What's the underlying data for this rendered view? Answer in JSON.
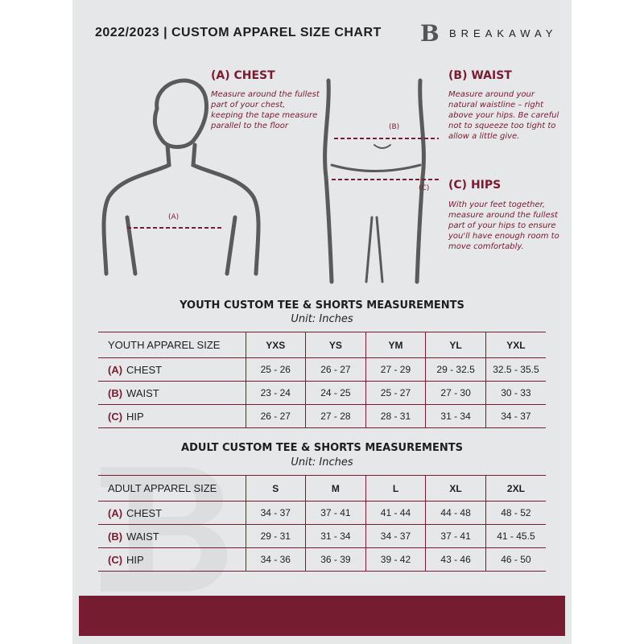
{
  "header": {
    "title": "2022/2023  |  CUSTOM APPAREL SIZE CHART",
    "brand": "BREAKAWAY",
    "logo_letter": "B"
  },
  "measures": {
    "chest": {
      "heading": "(A) CHEST",
      "marker": "(A)",
      "desc": "Measure around the fullest part of your chest, keeping the tape measure parallel to the floor"
    },
    "waist": {
      "heading": "(B) WAIST",
      "marker": "(B)",
      "desc": "Measure around your natural waistline – right above your hips. Be careful not to squeeze too tight to allow a little give."
    },
    "hips": {
      "heading": "(C) HIPS",
      "marker": "(C)",
      "desc": "With your feet together, measure around the fullest part of your hips to ensure you'll have enough room to move comfortably."
    }
  },
  "youth": {
    "title": "YOUTH CUSTOM TEE & SHORTS MEASUREMENTS",
    "unit": "Unit: Inches",
    "size_label": "YOUTH APPAREL SIZE",
    "sizes": [
      "YXS",
      "YS",
      "YM",
      "YL",
      "YXL"
    ],
    "rows": [
      {
        "letter": "(A)",
        "name": "CHEST",
        "values": [
          "25 - 26",
          "26 - 27",
          "27 - 29",
          "29 - 32.5",
          "32.5 - 35.5"
        ]
      },
      {
        "letter": "(B)",
        "name": "WAIST",
        "values": [
          "23 - 24",
          "24 - 25",
          "25 - 27",
          "27 - 30",
          "30 - 33"
        ]
      },
      {
        "letter": "(C)",
        "name": "HIP",
        "values": [
          "26 - 27",
          "27 - 28",
          "28 - 31",
          "31 - 34",
          "34 - 37"
        ]
      }
    ]
  },
  "adult": {
    "title": "ADULT CUSTOM TEE & SHORTS MEASUREMENTS",
    "unit": "Unit: Inches",
    "size_label": "ADULT APPAREL SIZE",
    "sizes": [
      "S",
      "M",
      "L",
      "XL",
      "2XL"
    ],
    "rows": [
      {
        "letter": "(A)",
        "name": "CHEST",
        "values": [
          "34 - 37",
          "37 - 41",
          "41 - 44",
          "44 - 48",
          "48 - 52"
        ]
      },
      {
        "letter": "(B)",
        "name": "WAIST",
        "values": [
          "29 - 31",
          "31 - 34",
          "34 - 37",
          "37 - 41",
          "41 - 45.5"
        ]
      },
      {
        "letter": "(C)",
        "name": "HIP",
        "values": [
          "34 - 36",
          "36 - 39",
          "39 - 42",
          "43 - 46",
          "46 - 50"
        ]
      }
    ]
  },
  "colors": {
    "accent": "#761c31",
    "background": "#e6e7e9"
  }
}
